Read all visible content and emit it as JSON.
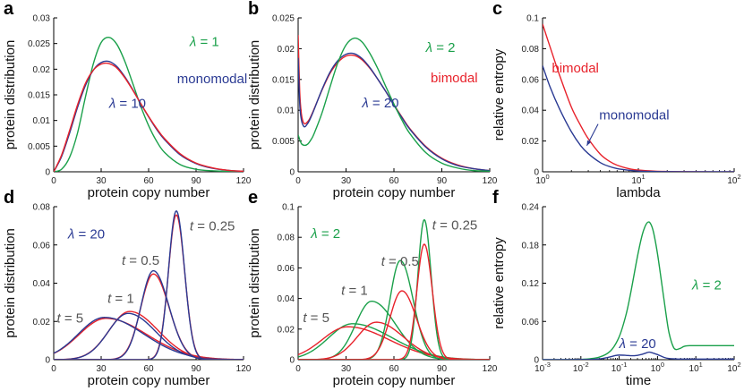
{
  "colors": {
    "blue": "#2a3a93",
    "red": "#e8222b",
    "green": "#1aa04a",
    "gray": "#555555",
    "black": "#000000"
  },
  "chart_data": [
    {
      "panel": "a",
      "type": "line",
      "xlabel": "protein copy number",
      "ylabel": "protein distribution",
      "xlim": [
        0,
        120
      ],
      "ylim": [
        0,
        0.03
      ],
      "xticks": [
        0,
        30,
        60,
        90,
        120
      ],
      "xticklabels": [
        "0",
        "30",
        "60",
        "90",
        "120"
      ],
      "yticks": [
        0,
        0.005,
        0.01,
        0.015,
        0.02,
        0.025,
        0.03
      ],
      "yticklabels": [
        "0",
        "0.005",
        "0.01",
        "0.015",
        "0.02",
        "0.025",
        "0.03"
      ],
      "series": [
        {
          "name": "λ = 1",
          "color": "green",
          "x": [
            0,
            5,
            10,
            15,
            20,
            25,
            30,
            35,
            40,
            45,
            50,
            55,
            60,
            65,
            70,
            80,
            90,
            100,
            110,
            120
          ],
          "y": [
            0,
            0.0005,
            0.0028,
            0.0075,
            0.0145,
            0.021,
            0.0252,
            0.0262,
            0.0248,
            0.0215,
            0.0172,
            0.0128,
            0.009,
            0.006,
            0.0038,
            0.0014,
            0.0005,
            0.0002,
            0.0001,
            0
          ]
        },
        {
          "name": "λ = 10",
          "color": "blue",
          "x": [
            0,
            5,
            10,
            15,
            20,
            25,
            30,
            35,
            40,
            45,
            50,
            55,
            60,
            65,
            70,
            80,
            90,
            100,
            110,
            120
          ],
          "y": [
            0,
            0.003,
            0.0075,
            0.0125,
            0.0168,
            0.0198,
            0.0213,
            0.0215,
            0.0205,
            0.0185,
            0.016,
            0.0133,
            0.0107,
            0.0083,
            0.0063,
            0.0033,
            0.0016,
            0.0007,
            0.0003,
            0.0001
          ]
        },
        {
          "name": "red",
          "color": "red",
          "x": [
            0,
            5,
            10,
            15,
            20,
            25,
            30,
            35,
            40,
            45,
            50,
            55,
            60,
            65,
            70,
            80,
            90,
            100,
            110,
            120
          ],
          "y": [
            0,
            0.0033,
            0.008,
            0.013,
            0.0172,
            0.0198,
            0.021,
            0.0211,
            0.0202,
            0.0183,
            0.0159,
            0.0133,
            0.0108,
            0.0085,
            0.0065,
            0.0035,
            0.0017,
            0.0008,
            0.0003,
            0.0001
          ]
        }
      ],
      "annotations": [
        {
          "text": "λ = 1",
          "color": "green",
          "x": 86,
          "y": 0.0245
        },
        {
          "text": "monomodal",
          "color": "blue",
          "x": 78,
          "y": 0.0173
        },
        {
          "text": "λ = 10",
          "color": "blue",
          "x": 35,
          "y": 0.0125
        }
      ]
    },
    {
      "panel": "b",
      "type": "line",
      "xlabel": "protein copy number",
      "ylabel": "protein distribution",
      "xlim": [
        0,
        120
      ],
      "ylim": [
        0,
        0.025
      ],
      "xticks": [
        0,
        30,
        60,
        90,
        120
      ],
      "xticklabels": [
        "0",
        "30",
        "60",
        "90",
        "120"
      ],
      "yticks": [
        0,
        0.005,
        0.01,
        0.015,
        0.02,
        0.025
      ],
      "yticklabels": [
        "0",
        "0.005",
        "0.01",
        "0.015",
        "0.02",
        "0.025"
      ],
      "series": [
        {
          "name": "red",
          "color": "red",
          "x": [
            0,
            1,
            2,
            3,
            4,
            5,
            7,
            10,
            15,
            20,
            25,
            30,
            35,
            40,
            45,
            50,
            55,
            60,
            65,
            70,
            80,
            90,
            100,
            110,
            120
          ],
          "y": [
            0.0222,
            0.013,
            0.0095,
            0.0082,
            0.0078,
            0.0079,
            0.0085,
            0.0102,
            0.0133,
            0.016,
            0.0178,
            0.0188,
            0.0189,
            0.0182,
            0.0168,
            0.015,
            0.013,
            0.0109,
            0.0089,
            0.007,
            0.0041,
            0.0022,
            0.0011,
            0.0005,
            0.0002
          ]
        },
        {
          "name": "λ = 20",
          "color": "blue",
          "x": [
            0,
            1,
            2,
            3,
            4,
            5,
            7,
            10,
            15,
            20,
            25,
            30,
            35,
            40,
            45,
            50,
            55,
            60,
            65,
            70,
            80,
            90,
            100,
            110,
            120
          ],
          "y": [
            0.0185,
            0.011,
            0.0085,
            0.0076,
            0.0073,
            0.0075,
            0.0083,
            0.0101,
            0.0134,
            0.0162,
            0.0181,
            0.0191,
            0.0192,
            0.0184,
            0.0169,
            0.015,
            0.013,
            0.0108,
            0.0088,
            0.0069,
            0.004,
            0.0021,
            0.001,
            0.0005,
            0.0002
          ]
        },
        {
          "name": "λ = 2",
          "color": "green",
          "x": [
            0,
            2,
            4,
            6,
            8,
            10,
            15,
            20,
            25,
            30,
            35,
            40,
            45,
            50,
            55,
            60,
            65,
            70,
            80,
            90,
            100,
            110,
            120
          ],
          "y": [
            0.006,
            0.0046,
            0.0043,
            0.0045,
            0.0052,
            0.0062,
            0.0096,
            0.0138,
            0.0178,
            0.0206,
            0.0217,
            0.0211,
            0.0192,
            0.0167,
            0.0138,
            0.011,
            0.0084,
            0.0062,
            0.0031,
            0.0014,
            0.0006,
            0.0002,
            0.0001
          ]
        }
      ],
      "annotations": [
        {
          "text": "λ = 2",
          "color": "green",
          "x": 80,
          "y": 0.0195
        },
        {
          "text": "bimodal",
          "color": "red",
          "x": 83,
          "y": 0.0145
        },
        {
          "text": "λ = 20",
          "color": "blue",
          "x": 40,
          "y": 0.0105
        }
      ]
    },
    {
      "panel": "c",
      "type": "line",
      "xscale": "log",
      "xlabel": "lambda",
      "ylabel": "relative entropy",
      "xlim": [
        1,
        100
      ],
      "ylim": [
        0,
        0.1
      ],
      "xticks": [
        1,
        10,
        100
      ],
      "xticklabels": [
        "10^0",
        "10^1",
        "10^2"
      ],
      "yticks": [
        0,
        0.02,
        0.04,
        0.06,
        0.08,
        0.1
      ],
      "yticklabels": [
        "0",
        "0.02",
        "0.04",
        "0.06",
        "0.08",
        "0.1"
      ],
      "series": [
        {
          "name": "bimodal",
          "color": "red",
          "x": [
            1,
            1.2,
            1.5,
            2,
            2.5,
            3,
            4,
            5,
            6,
            8,
            10,
            15,
            20,
            30,
            50,
            100
          ],
          "y": [
            0.096,
            0.081,
            0.063,
            0.042,
            0.03,
            0.0215,
            0.0115,
            0.0068,
            0.0043,
            0.002,
            0.0011,
            0.0004,
            0.0002,
            0.0001,
            0,
            0
          ]
        },
        {
          "name": "monomodal",
          "color": "blue",
          "x": [
            1,
            1.2,
            1.5,
            2,
            2.5,
            3,
            4,
            5,
            6,
            8,
            10,
            15,
            20,
            30,
            50,
            100
          ],
          "y": [
            0.069,
            0.055,
            0.041,
            0.026,
            0.017,
            0.0118,
            0.006,
            0.0034,
            0.0021,
            0.001,
            0.0005,
            0.0002,
            0.0001,
            0,
            0,
            0
          ]
        }
      ],
      "annotations": [
        {
          "text": "bimodal",
          "color": "red",
          "x": 1.25,
          "y": 0.0645
        },
        {
          "text": "monomodal",
          "color": "blue",
          "x": 3.9,
          "y": 0.034
        }
      ],
      "arrow": {
        "from": [
          3.8,
          0.031
        ],
        "to": [
          2.9,
          0.017
        ]
      }
    },
    {
      "panel": "d",
      "type": "line",
      "xlabel": "protein copy number",
      "ylabel": "protein distribution",
      "xlim": [
        0,
        120
      ],
      "ylim": [
        0,
        0.08
      ],
      "xticks": [
        0,
        30,
        60,
        90,
        120
      ],
      "xticklabels": [
        "0",
        "30",
        "60",
        "90",
        "120"
      ],
      "yticks": [
        0,
        0.02,
        0.04,
        0.06,
        0.08
      ],
      "yticklabels": [
        "0",
        "0.02",
        "0.04",
        "0.06",
        "0.08"
      ],
      "series": [
        {
          "name": "t=5 red",
          "color": "red",
          "shape": "gauss",
          "mu": 33,
          "sl": 17,
          "sr": 26,
          "a": 0.0216
        },
        {
          "name": "t=5 blue",
          "color": "blue",
          "shape": "gauss",
          "mu": 32,
          "sl": 16.5,
          "sr": 25,
          "a": 0.0221
        },
        {
          "name": "t=1 red",
          "color": "red",
          "shape": "gauss",
          "mu": 48,
          "sl": 13,
          "sr": 18,
          "a": 0.0252
        },
        {
          "name": "t=1 blue",
          "color": "blue",
          "shape": "gauss",
          "mu": 47,
          "sl": 12.5,
          "sr": 17.5,
          "a": 0.0242
        },
        {
          "name": "t=0.5 red",
          "color": "red",
          "shape": "gauss",
          "mu": 63,
          "sl": 8,
          "sr": 10,
          "a": 0.0448
        },
        {
          "name": "t=0.5 blue",
          "color": "blue",
          "shape": "gauss",
          "mu": 63,
          "sl": 7.8,
          "sr": 9.8,
          "a": 0.0465
        },
        {
          "name": "t=0.25 red",
          "color": "red",
          "shape": "gauss",
          "mu": 77.5,
          "sl": 5,
          "sr": 5.3,
          "a": 0.0757
        },
        {
          "name": "t=0.25 blue",
          "color": "blue",
          "shape": "gauss",
          "mu": 77.5,
          "sl": 4.9,
          "sr": 5.2,
          "a": 0.0778
        }
      ],
      "annotations": [
        {
          "text": "λ = 20",
          "color": "blue",
          "x": 9,
          "y": 0.0635
        },
        {
          "text": "t = 0.25",
          "color": "gray",
          "x": 86,
          "y": 0.0675
        },
        {
          "text": "t = 0.5",
          "color": "gray",
          "x": 43,
          "y": 0.0495
        },
        {
          "text": "t = 1",
          "color": "gray",
          "x": 34,
          "y": 0.0298
        },
        {
          "text": "t = 5",
          "color": "gray",
          "x": 2,
          "y": 0.0195
        }
      ]
    },
    {
      "panel": "e",
      "type": "line",
      "xlabel": "protein copy number",
      "ylabel": "protein distribution",
      "xlim": [
        0,
        120
      ],
      "ylim": [
        0,
        0.1
      ],
      "xticks": [
        0,
        30,
        60,
        90,
        120
      ],
      "xticklabels": [
        "0",
        "30",
        "60",
        "90",
        "120"
      ],
      "yticks": [
        0,
        0.02,
        0.04,
        0.06,
        0.08,
        0.1
      ],
      "yticklabels": [
        "0",
        "0.02",
        "0.04",
        "0.06",
        "0.08",
        "0.1"
      ],
      "series": [
        {
          "name": "t=5 green",
          "color": "green",
          "shape": "gauss",
          "mu": 34,
          "sl": 15,
          "sr": 25,
          "a": 0.0235
        },
        {
          "name": "t=5 red",
          "color": "red",
          "shape": "gauss",
          "mu": 31,
          "sl": 16,
          "sr": 26,
          "a": 0.0215
        },
        {
          "name": "t=1 green",
          "color": "green",
          "shape": "gauss",
          "mu": 46,
          "sl": 10,
          "sr": 15,
          "a": 0.0382
        },
        {
          "name": "t=1 red",
          "color": "red",
          "shape": "gauss",
          "mu": 49,
          "sl": 12,
          "sr": 17,
          "a": 0.0245
        },
        {
          "name": "t=0.5 green",
          "color": "green",
          "shape": "gauss",
          "mu": 64,
          "sl": 6.5,
          "sr": 8,
          "a": 0.0648
        },
        {
          "name": "t=0.5 red",
          "color": "red",
          "shape": "gauss",
          "mu": 65,
          "sl": 7.5,
          "sr": 9,
          "a": 0.045
        },
        {
          "name": "t=0.25 green",
          "color": "green",
          "shape": "gauss",
          "mu": 79,
          "sl": 4,
          "sr": 4.3,
          "a": 0.0915
        },
        {
          "name": "t=0.25 red",
          "color": "red",
          "shape": "gauss",
          "mu": 79,
          "sl": 4.6,
          "sr": 5,
          "a": 0.0755
        }
      ],
      "annotations": [
        {
          "text": "λ = 2",
          "color": "green",
          "x": 8,
          "y": 0.0795
        },
        {
          "text": "t = 0.25",
          "color": "gray",
          "x": 84,
          "y": 0.085
        },
        {
          "text": "t = 0.5",
          "color": "gray",
          "x": 52,
          "y": 0.0615
        },
        {
          "text": "t = 1",
          "color": "gray",
          "x": 27,
          "y": 0.0425
        },
        {
          "text": "t = 5",
          "color": "gray",
          "x": 3,
          "y": 0.0245
        }
      ]
    },
    {
      "panel": "f",
      "type": "line",
      "xscale": "log",
      "xlabel": "time",
      "ylabel": "relative entropy",
      "xlim": [
        0.001,
        100
      ],
      "ylim": [
        0,
        0.24
      ],
      "xticks": [
        0.001,
        0.01,
        0.1,
        1,
        10,
        100
      ],
      "xticklabels": [
        "10^-3",
        "10^-2",
        "10^-1",
        "10^0",
        "10^1",
        "10^2"
      ],
      "yticks": [
        0,
        0.06,
        0.12,
        0.18,
        0.24
      ],
      "yticklabels": [
        "0",
        "0.06",
        "0.12",
        "0.18",
        "0.24"
      ],
      "series": [
        {
          "name": "λ = 2",
          "color": "green",
          "x": [
            0.001,
            0.01,
            0.03,
            0.06,
            0.1,
            0.15,
            0.2,
            0.3,
            0.4,
            0.5,
            0.6,
            0.7,
            0.8,
            1,
            1.3,
            1.7,
            2,
            2.5,
            3,
            4,
            5,
            7,
            10,
            100
          ],
          "y": [
            0,
            0.0005,
            0.004,
            0.014,
            0.036,
            0.07,
            0.105,
            0.162,
            0.196,
            0.212,
            0.216,
            0.21,
            0.198,
            0.166,
            0.118,
            0.068,
            0.042,
            0.022,
            0.016,
            0.018,
            0.021,
            0.022,
            0.022,
            0.022
          ]
        },
        {
          "name": "λ = 20",
          "color": "blue",
          "x": [
            0.001,
            0.01,
            0.03,
            0.05,
            0.08,
            0.1,
            0.15,
            0.2,
            0.3,
            0.4,
            0.5,
            0.6,
            0.7,
            1,
            1.5,
            2,
            3,
            5,
            10,
            100
          ],
          "y": [
            0,
            0.0002,
            0.0012,
            0.0035,
            0.0065,
            0.0072,
            0.0068,
            0.0062,
            0.0068,
            0.0085,
            0.0105,
            0.0118,
            0.0112,
            0.008,
            0.0035,
            0.0018,
            0.0012,
            0.001,
            0.001,
            0.001
          ]
        }
      ],
      "annotations": [
        {
          "text": "λ = 2",
          "color": "green",
          "x": 8,
          "y": 0.11
        },
        {
          "text": "λ = 20",
          "color": "blue",
          "x": 0.1,
          "y": 0.0185
        }
      ]
    }
  ]
}
